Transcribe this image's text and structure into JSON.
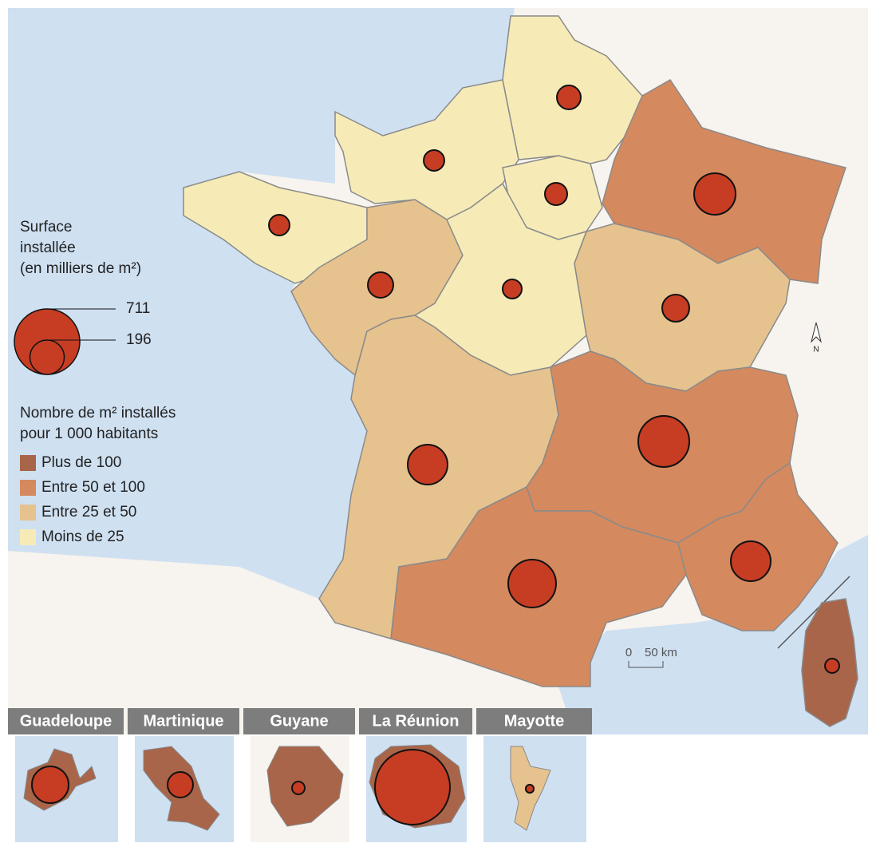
{
  "legend": {
    "size_title": [
      "Surface",
      "installée",
      "(en milliers de m²)"
    ],
    "size_items": [
      711,
      196
    ],
    "color_title": [
      "Nombre de m² installés",
      "pour 1 000 habitants"
    ],
    "classes": [
      {
        "label": "Plus de 100",
        "color": "#a86549"
      },
      {
        "label": "Entre 50 et 100",
        "color": "#d4895f"
      },
      {
        "label": "Entre 25 et 50",
        "color": "#e6c28e"
      },
      {
        "label": "Moins de 25",
        "color": "#f6ebb7"
      }
    ]
  },
  "regions": [
    {
      "value": 95,
      "color": "#f6ebb7"
    },
    {
      "value": 71,
      "color": "#f6ebb7"
    },
    {
      "value": 83,
      "color": "#f6ebb7"
    },
    {
      "value": 286,
      "color": "#d4895f"
    },
    {
      "value": 71,
      "color": "#f6ebb7"
    },
    {
      "value": 108,
      "color": "#e6c28e"
    },
    {
      "value": 61,
      "color": "#f6ebb7"
    },
    {
      "value": 122,
      "color": "#e6c28e"
    },
    {
      "value": 264,
      "color": "#e6c28e"
    },
    {
      "value": 433,
      "color": "#d4895f"
    },
    {
      "value": 380,
      "color": "#d4895f"
    },
    {
      "value": 264,
      "color": "#d4895f"
    },
    {
      "value": 34,
      "color": "#a86549"
    }
  ],
  "overseas": [
    {
      "name": "Guadeloupe",
      "value": 224,
      "color": "#a86549"
    },
    {
      "name": "Martinique",
      "value": 108,
      "color": "#a86549"
    },
    {
      "name": "Guyane",
      "value": 27,
      "color": "#a86549"
    },
    {
      "name": "La Réunion",
      "value": 934,
      "color": "#a86549"
    },
    {
      "name": "Mayotte",
      "value": 11,
      "color": "#e6c28e"
    }
  ],
  "scale_bar": [
    "0",
    "50 km"
  ],
  "north": "N"
}
